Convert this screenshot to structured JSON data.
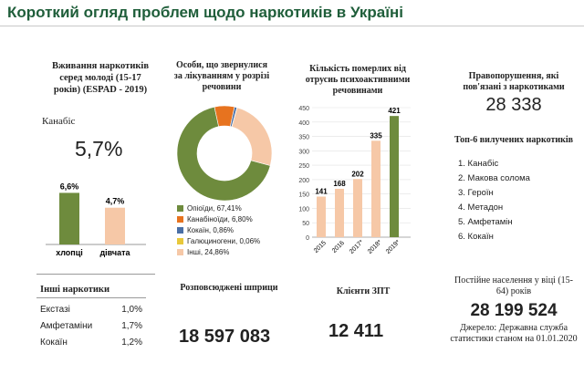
{
  "title": "Короткий огляд проблем щодо наркотиків в Україні",
  "youth": {
    "heading": "Вживання наркотиків серед молоді (15-17 років) (ESPAD - 2019)",
    "substance": "Канабіс",
    "total_pct": "5,7%"
  },
  "youth_chart": {
    "type": "bar",
    "categories": [
      "хлопці",
      "дівчата"
    ],
    "values": [
      6.6,
      4.7
    ],
    "value_labels": [
      "6,6%",
      "4,7%"
    ],
    "colors": [
      "#6e8b3d",
      "#f6c8a7"
    ],
    "ylim": [
      0,
      7
    ]
  },
  "treatment": {
    "heading": "Особи, що звернулися за лікуванням у розрізі речовини"
  },
  "treatment_chart": {
    "type": "pie",
    "labels": [
      "Опіоїди, 67,41%",
      "Канабіноїди, 6,80%",
      "Кокаїн, 0,86%",
      "Галюциногени, 0,06%",
      "Інші, 24,86%"
    ],
    "values": [
      67.41,
      6.8,
      0.86,
      0.06,
      24.86
    ],
    "colors": [
      "#6e8b3d",
      "#e7731f",
      "#4a6fa5",
      "#e8c83b",
      "#f6c8a7"
    ]
  },
  "deaths": {
    "heading": "Кількість померлих від отрусиь психоактивними речовинами"
  },
  "deaths_chart": {
    "type": "bar",
    "categories": [
      "2015",
      "2016",
      "2017*",
      "2018*",
      "2019*"
    ],
    "values": [
      141,
      168,
      202,
      335,
      421
    ],
    "value_labels": [
      "141",
      "168",
      "202",
      "335",
      "421"
    ],
    "y_ticks": [
      "0",
      "50",
      "100",
      "150",
      "200",
      "250",
      "300",
      "350",
      "400",
      "450"
    ],
    "ylim": [
      0,
      450
    ],
    "colors": [
      "#f6c8a7",
      "#f6c8a7",
      "#f6c8a7",
      "#f6c8a7",
      "#6e8b3d"
    ]
  },
  "offences": {
    "heading": "Правопорушення, які пов'язані з наркотиками",
    "value": "28 338"
  },
  "seized": {
    "heading": "Топ-6 вилучених наркотиків",
    "items": [
      "1. Канабіс",
      "2. Макова солома",
      "3. Героїн",
      "4. Метадон",
      "5. Амфетамін",
      "6. Кокаїн"
    ]
  },
  "other_drugs": {
    "heading": "Інші наркотики",
    "rows": [
      {
        "name": "Екстазі",
        "value": "1,0%"
      },
      {
        "name": "Амфетаміни",
        "value": "1,7%"
      },
      {
        "name": "Кокаїн",
        "value": "1,2%"
      }
    ]
  },
  "syringes": {
    "heading": "Розповсюджені шприци",
    "value": "18 597 083"
  },
  "ost": {
    "heading": "Клієнти ЗПТ",
    "value": "12 411"
  },
  "population": {
    "heading": "Постійне населення у віці (15-64) років",
    "value": "28 199 524",
    "source": "Джерело: Державна служба статистики станом на 01.01.2020"
  }
}
